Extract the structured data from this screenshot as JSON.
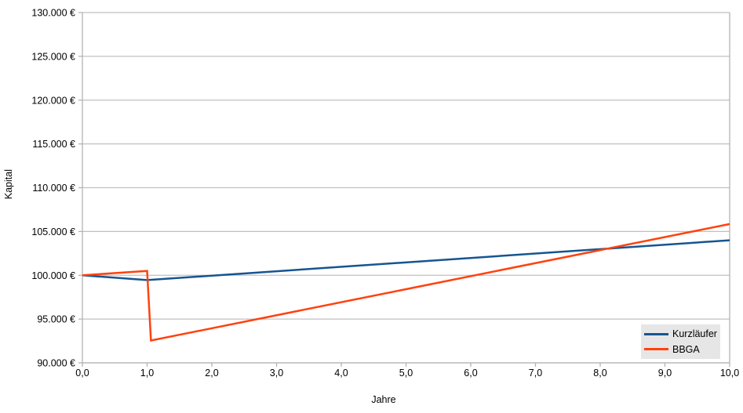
{
  "chart_data": {
    "type": "line",
    "title": "",
    "xlabel": "Jahre",
    "ylabel": "Kapital",
    "xlim": [
      0,
      10
    ],
    "ylim": [
      90000,
      130000
    ],
    "x_ticks": [
      0,
      1,
      2,
      3,
      4,
      5,
      6,
      7,
      8,
      9,
      10
    ],
    "x_tick_labels": [
      "0,0",
      "1,0",
      "2,0",
      "3,0",
      "4,0",
      "5,0",
      "6,0",
      "7,0",
      "8,0",
      "9,0",
      "10,0"
    ],
    "y_ticks": [
      90000,
      95000,
      100000,
      105000,
      110000,
      115000,
      120000,
      125000,
      130000
    ],
    "y_tick_labels": [
      "90.000 €",
      "95.000 €",
      "100.000 €",
      "105.000 €",
      "110.000 €",
      "115.000 €",
      "120.000 €",
      "125.000 €",
      "130.000 €"
    ],
    "grid": "horizontal-major",
    "legend_position": "bottom-right-inside",
    "series": [
      {
        "name": "Kurzläufer",
        "color": "#165591",
        "points": [
          [
            0,
            100000
          ],
          [
            1,
            99450
          ],
          [
            10,
            104000
          ]
        ]
      },
      {
        "name": "BBGA",
        "color": "#ff420e",
        "points": [
          [
            0,
            100000
          ],
          [
            1,
            100500
          ],
          [
            1.06,
            92550
          ],
          [
            10,
            105850
          ]
        ]
      }
    ]
  },
  "colors": {
    "background": "#ffffff",
    "gridline": "#c0c0c0",
    "axis": "#b3b3b3",
    "legend_bg": "#e6e6e6",
    "text": "#000000"
  }
}
